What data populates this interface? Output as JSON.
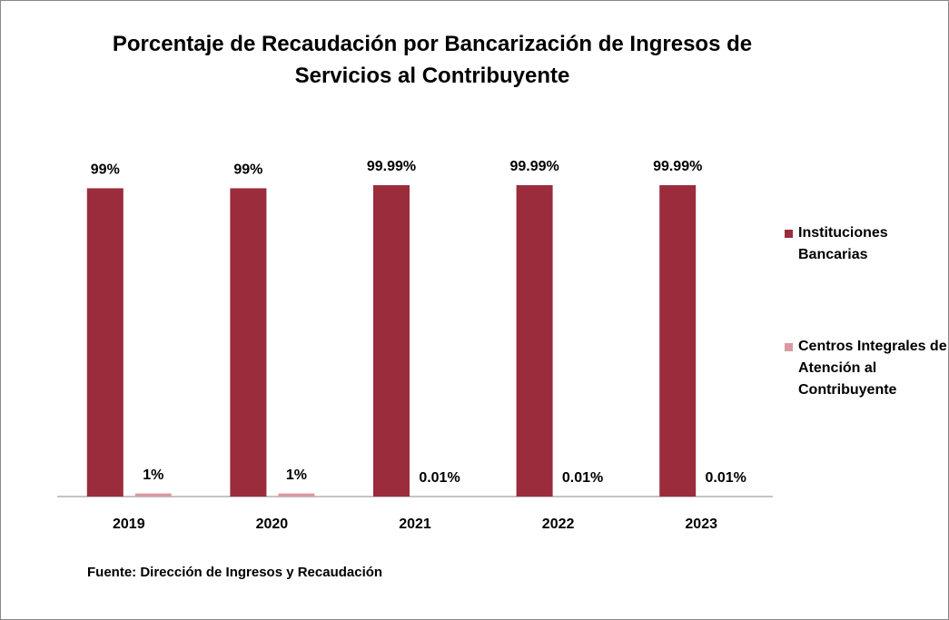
{
  "chart_data": {
    "type": "bar",
    "title": "Porcentaje de Recaudación por Bancarización de Ingresos de Servicios al Contribuyente",
    "categories": [
      "2019",
      "2020",
      "2021",
      "2022",
      "2023"
    ],
    "series": [
      {
        "name": "Instituciones Bancarias",
        "color": "#9b2c3c",
        "values": [
          99,
          99,
          99.99,
          99.99,
          99.99
        ],
        "value_labels": [
          "99%",
          "99%",
          "99.99%",
          "99.99%",
          "99.99%"
        ]
      },
      {
        "name": "Centros Integrales de Atención al Contribuyente",
        "color": "#d99aa0",
        "values": [
          1,
          1,
          0.01,
          0.01,
          0.01
        ],
        "value_labels": [
          "1%",
          "1%",
          "0.01%",
          "0.01%",
          "0.01%"
        ]
      }
    ],
    "legend": "right",
    "source": "Fuente: Dirección de Ingresos y Recaudación"
  }
}
